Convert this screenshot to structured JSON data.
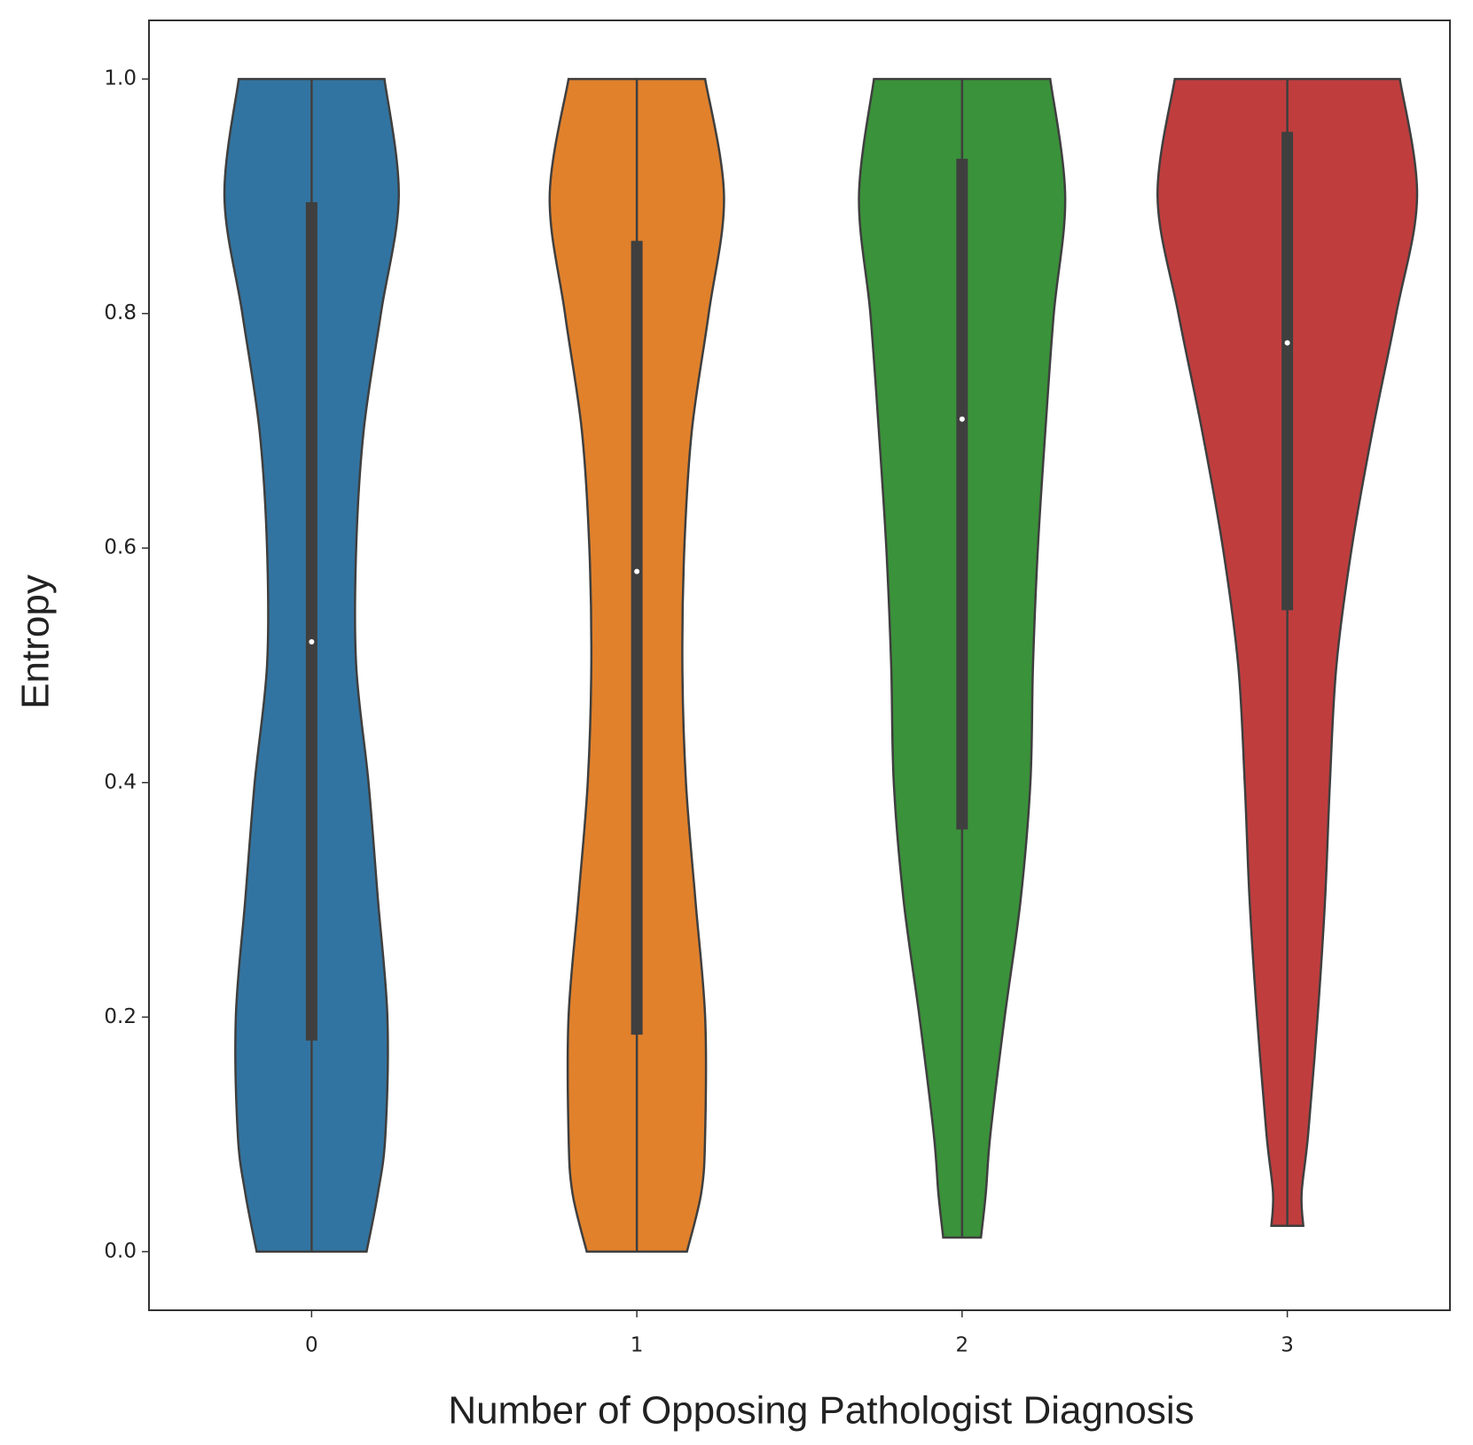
{
  "chart_data": {
    "type": "violin",
    "xlabel": "Number of Opposing Pathologist Diagnosis",
    "ylabel": "Entropy",
    "categories": [
      "0",
      "1",
      "2",
      "3"
    ],
    "xlim": [
      -0.5,
      3.5
    ],
    "ylim": [
      -0.05,
      1.05
    ],
    "yticks": [
      {
        "value": 0,
        "label": "0.0"
      },
      0.2,
      0.4,
      0.6,
      0.8,
      {
        "value": 1,
        "label": "1.0"
      }
    ],
    "violins": [
      {
        "color": "#3274a1",
        "min": 0,
        "max": 1,
        "q1": 0.18,
        "median": 0.52,
        "q3": 0.895,
        "kde_y": [
          0,
          0.05,
          0.1,
          0.2,
          0.3,
          0.4,
          0.5,
          0.6,
          0.7,
          0.8,
          0.9,
          1.0
        ],
        "kde_halfwidth": [
          0.169,
          0.204,
          0.227,
          0.233,
          0.204,
          0.175,
          0.137,
          0.137,
          0.16,
          0.213,
          0.268,
          0.224
        ]
      },
      {
        "color": "#e1812c",
        "min": 0,
        "max": 1,
        "q1": 0.185,
        "median": 0.58,
        "q3": 0.862,
        "kde_y": [
          0,
          0.05,
          0.1,
          0.2,
          0.3,
          0.4,
          0.5,
          0.6,
          0.7,
          0.8,
          0.9,
          1.0
        ],
        "kde_halfwidth": [
          0.154,
          0.198,
          0.21,
          0.21,
          0.18,
          0.151,
          0.14,
          0.146,
          0.169,
          0.221,
          0.268,
          0.21
        ]
      },
      {
        "color": "#3a923a",
        "min": 0.012,
        "max": 1,
        "q1": 0.36,
        "median": 0.71,
        "q3": 0.932,
        "kde_y": [
          0.012,
          0.05,
          0.1,
          0.2,
          0.3,
          0.4,
          0.5,
          0.6,
          0.7,
          0.8,
          0.9,
          1.0
        ],
        "kde_halfwidth": [
          0.058,
          0.073,
          0.087,
          0.131,
          0.18,
          0.21,
          0.218,
          0.233,
          0.256,
          0.282,
          0.317,
          0.271
        ]
      },
      {
        "color": "#c03d3e",
        "min": 0.022,
        "max": 1,
        "q1": 0.547,
        "median": 0.775,
        "q3": 0.955,
        "kde_y": [
          0.022,
          0.05,
          0.1,
          0.2,
          0.3,
          0.4,
          0.5,
          0.6,
          0.7,
          0.8,
          0.9,
          1.0
        ],
        "kde_halfwidth": [
          0.049,
          0.044,
          0.064,
          0.093,
          0.116,
          0.131,
          0.151,
          0.198,
          0.262,
          0.335,
          0.399,
          0.346
        ]
      }
    ]
  }
}
